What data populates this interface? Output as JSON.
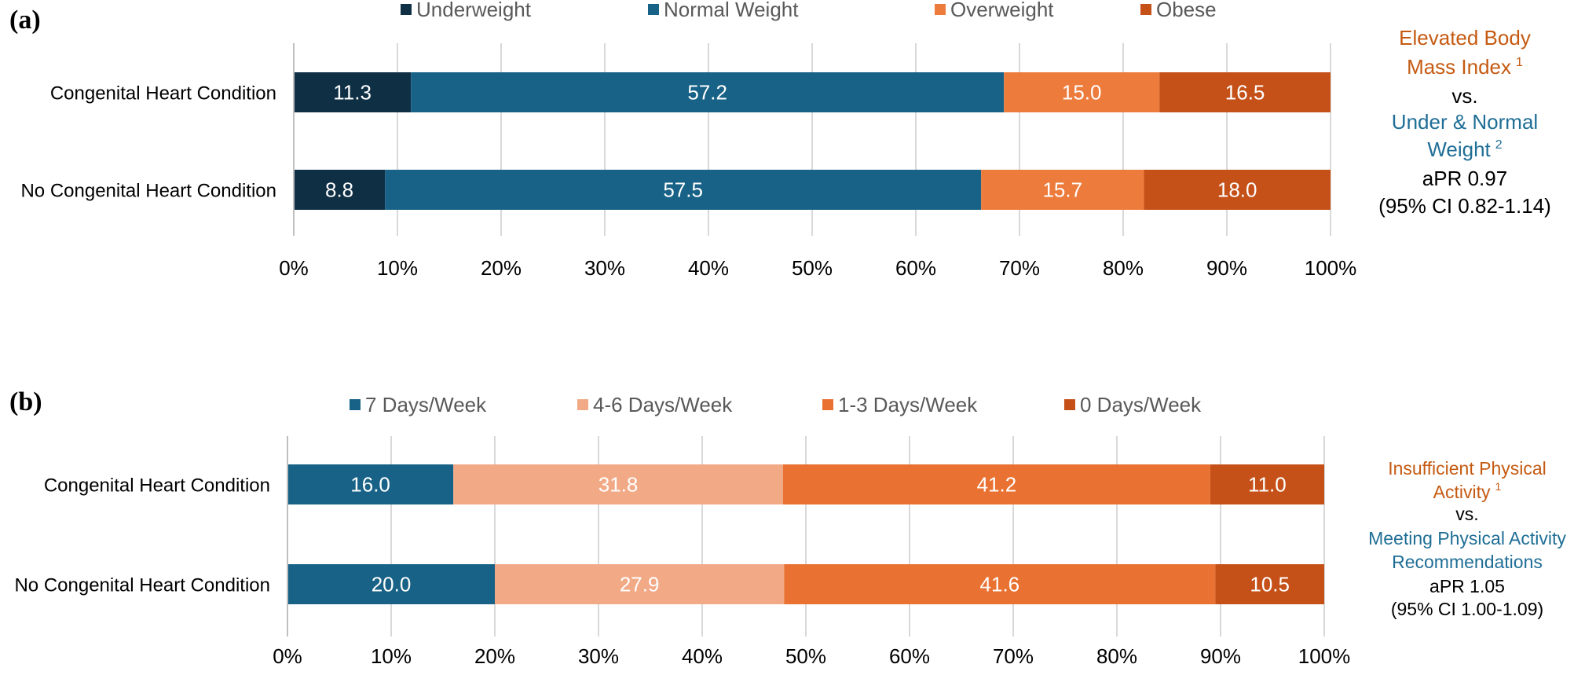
{
  "chart_data": [
    {
      "type": "bar",
      "orientation": "horizontal-stacked-100",
      "panel_label": "(a)",
      "categories": [
        "Congenital Heart Condition",
        "No Congenital Heart Condition"
      ],
      "series": [
        {
          "name": "Underweight",
          "color": "#0f2f45",
          "values": [
            11.3,
            8.8
          ]
        },
        {
          "name": "Normal Weight",
          "color": "#176286",
          "values": [
            57.2,
            57.5
          ]
        },
        {
          "name": "Overweight",
          "color": "#ed7b3c",
          "values": [
            15.0,
            15.7
          ]
        },
        {
          "name": "Obese",
          "color": "#c55119",
          "values": [
            16.5,
            18.0
          ]
        }
      ],
      "value_labels": [
        [
          "11.3",
          "8.8"
        ],
        [
          "57.2",
          "57.5"
        ],
        [
          "15.0",
          "15.7"
        ],
        [
          "16.5",
          "18.0"
        ]
      ],
      "xlim": [
        0,
        100
      ],
      "xticks": [
        "0%",
        "10%",
        "20%",
        "30%",
        "40%",
        "50%",
        "60%",
        "70%",
        "80%",
        "90%",
        "100%"
      ],
      "legend_position": "top",
      "annotation": {
        "lines": [
          {
            "text": "Elevated Body",
            "color": "#c55a11"
          },
          {
            "text": "Mass Index",
            "sup": "1",
            "color": "#c55a11"
          },
          {
            "text": "vs.",
            "color": "#000000"
          },
          {
            "text": "Under & Normal",
            "color": "#1f6e96"
          },
          {
            "text": "Weight",
            "sup": "2",
            "color": "#1f6e96"
          },
          {
            "text": "aPR 0.97",
            "color": "#000000"
          },
          {
            "text": "(95% CI 0.82-1.14)",
            "color": "#000000"
          }
        ]
      }
    },
    {
      "type": "bar",
      "orientation": "horizontal-stacked-100",
      "panel_label": "(b)",
      "categories": [
        "Congenital Heart Condition",
        "No Congenital Heart Condition"
      ],
      "series": [
        {
          "name": "7 Days/Week",
          "color": "#176286",
          "values": [
            16.0,
            20.0
          ]
        },
        {
          "name": "4-6 Days/Week",
          "color": "#f2a986",
          "values": [
            31.8,
            27.9
          ]
        },
        {
          "name": "1-3 Days/Week",
          "color": "#e97131",
          "values": [
            41.2,
            41.6
          ]
        },
        {
          "name": "0 Days/Week",
          "color": "#c55119",
          "values": [
            11.0,
            10.5
          ]
        }
      ],
      "value_labels": [
        [
          "16.0",
          "20.0"
        ],
        [
          "31.8",
          "27.9"
        ],
        [
          "41.2",
          "41.6"
        ],
        [
          "11.0",
          "10.5"
        ]
      ],
      "xlim": [
        0,
        100
      ],
      "xticks": [
        "0%",
        "10%",
        "20%",
        "30%",
        "40%",
        "50%",
        "60%",
        "70%",
        "80%",
        "90%",
        "100%"
      ],
      "legend_position": "top",
      "annotation": {
        "lines": [
          {
            "text": "Insufficient Physical",
            "color": "#c55a11"
          },
          {
            "text": "Activity",
            "sup": "1",
            "color": "#c55a11"
          },
          {
            "text": "vs.",
            "color": "#000000"
          },
          {
            "text": "Meeting Physical Activity",
            "color": "#1f6e96"
          },
          {
            "text": "Recommendations",
            "color": "#1f6e96"
          },
          {
            "text": "aPR 1.05",
            "color": "#000000"
          },
          {
            "text": "(95% CI 1.00-1.09)",
            "color": "#000000"
          }
        ]
      }
    }
  ]
}
